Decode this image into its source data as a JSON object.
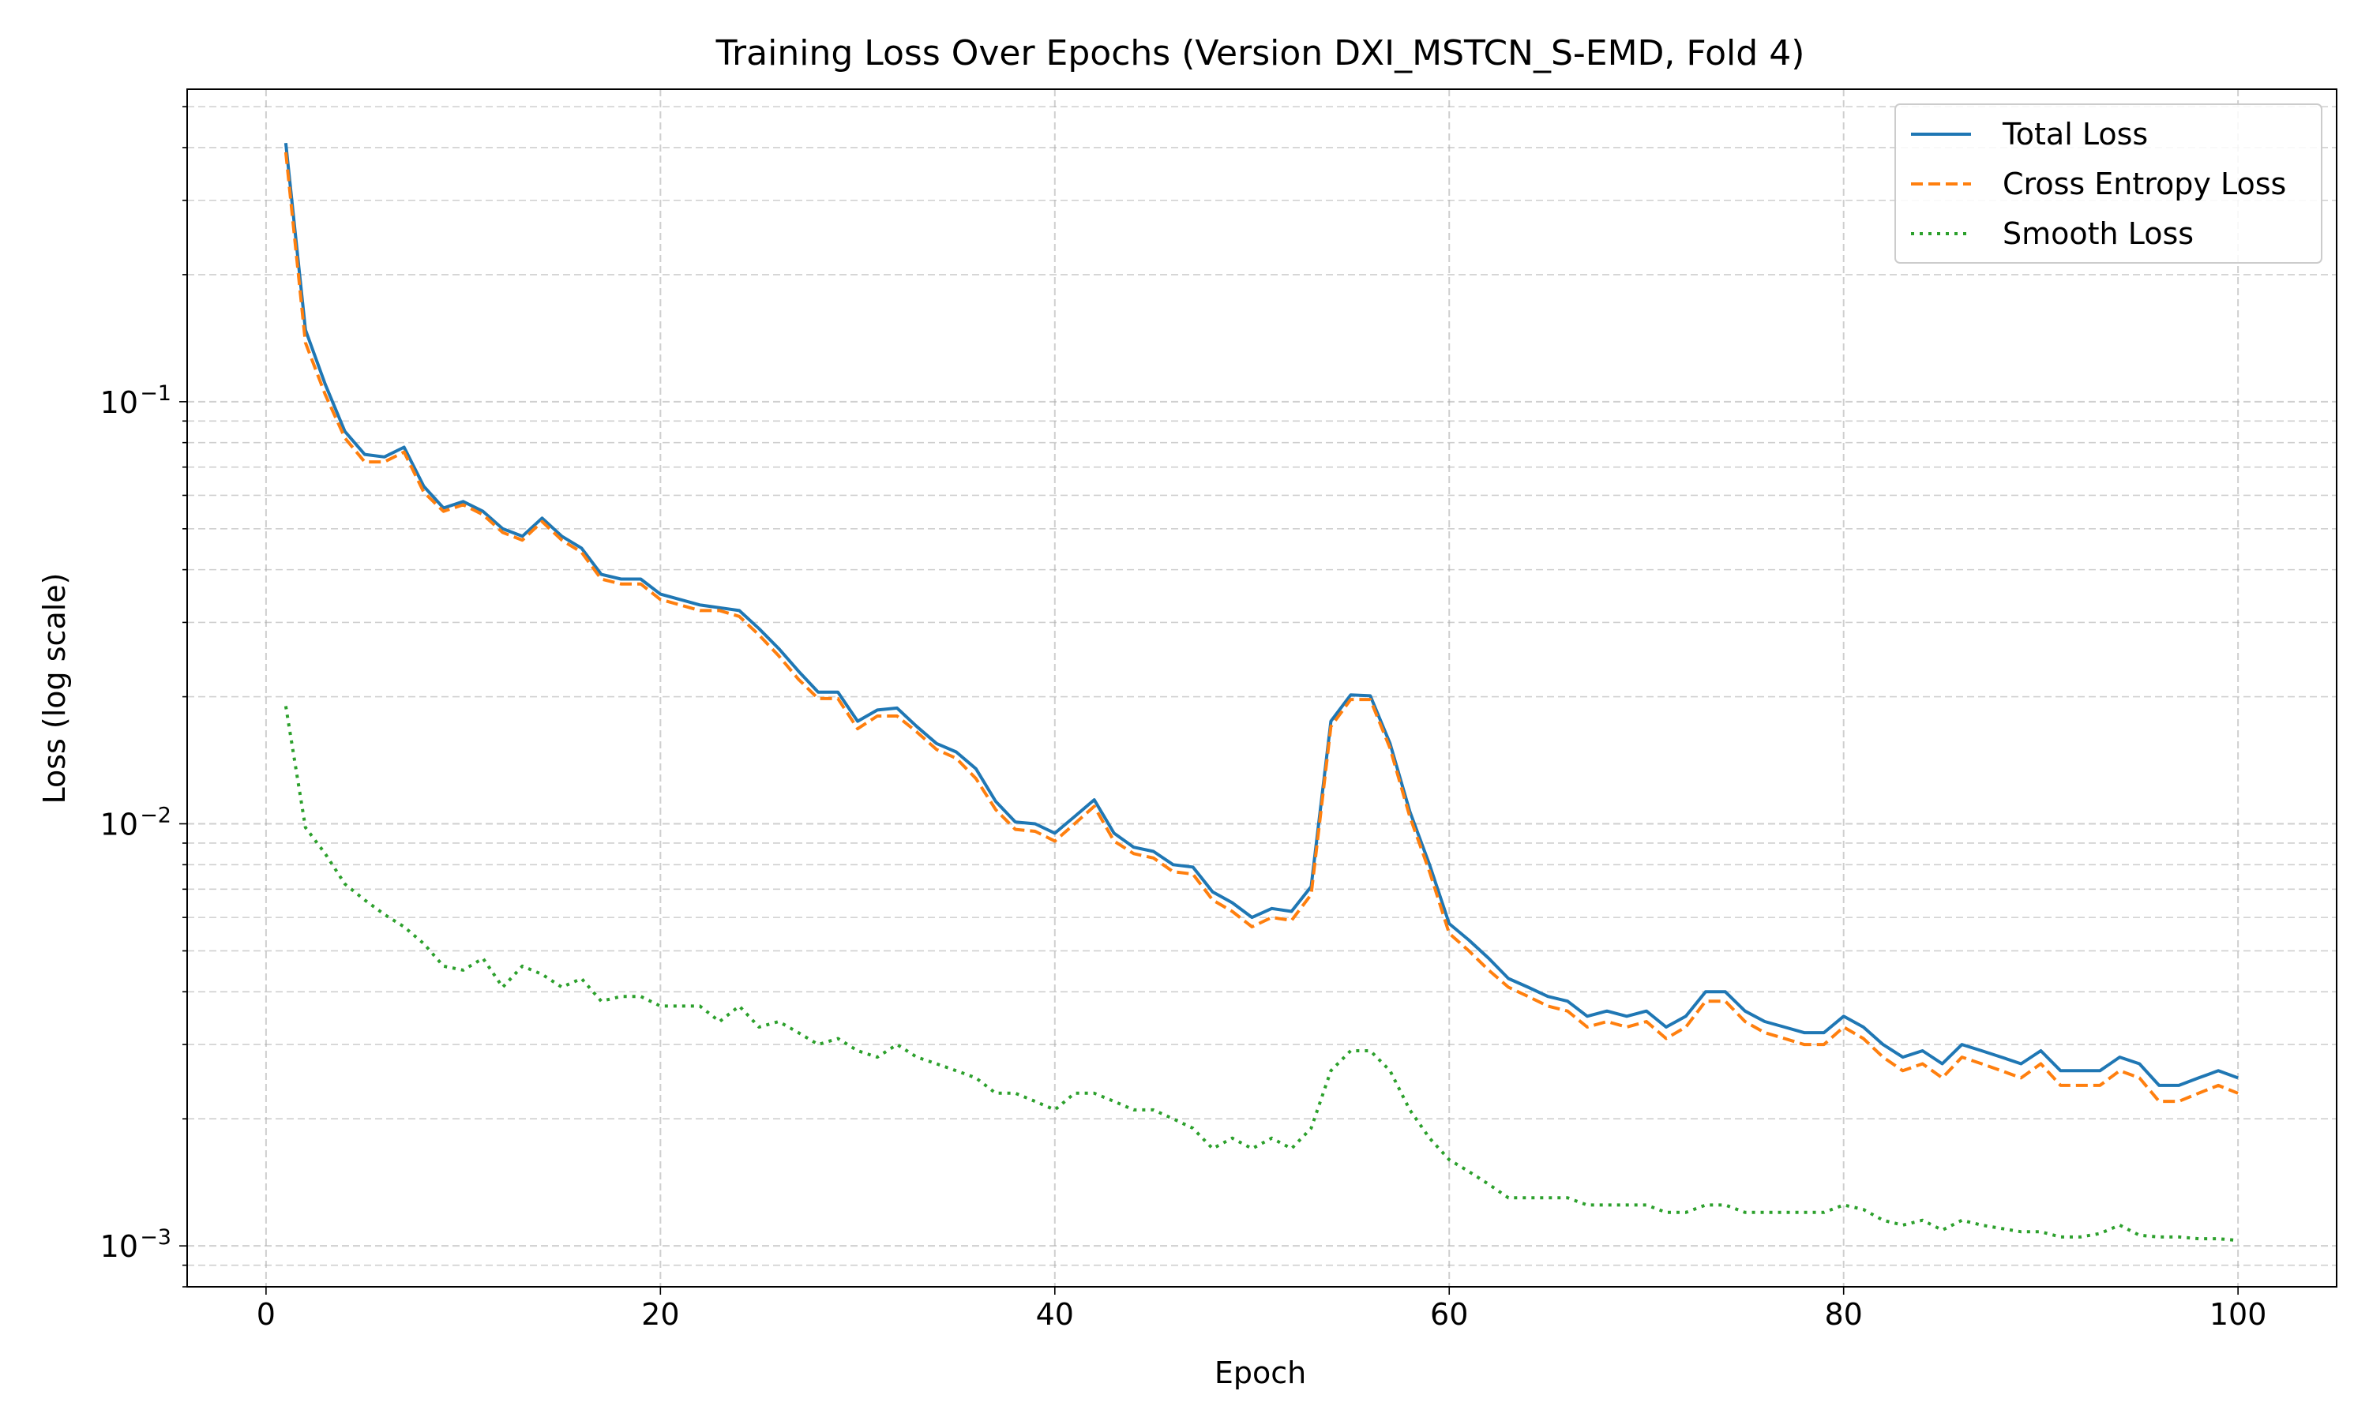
{
  "chart_data": {
    "type": "line",
    "title": "Training Loss Over Epochs (Version DXI_MSTCN_S-EMD, Fold 4)",
    "xlabel": "Epoch",
    "ylabel": "Loss (log scale)",
    "xscale": "linear",
    "yscale": "log",
    "xlim": [
      -4,
      105
    ],
    "ylim": [
      0.0008,
      0.55
    ],
    "grid": true,
    "legend_position": "top-right",
    "x_ticks": [
      {
        "value": 0,
        "label": "0"
      },
      {
        "value": 20,
        "label": "20"
      },
      {
        "value": 40,
        "label": "40"
      },
      {
        "value": 60,
        "label": "60"
      },
      {
        "value": 80,
        "label": "80"
      },
      {
        "value": 100,
        "label": "100"
      }
    ],
    "y_ticks": [
      {
        "value": 0.1,
        "base": "10",
        "exp": "−1"
      },
      {
        "value": 0.01,
        "base": "10",
        "exp": "−2"
      },
      {
        "value": 0.001,
        "base": "10",
        "exp": "−3"
      }
    ],
    "x": [
      1,
      2,
      3,
      4,
      5,
      6,
      7,
      8,
      9,
      10,
      11,
      12,
      13,
      14,
      15,
      16,
      17,
      18,
      19,
      20,
      21,
      22,
      23,
      24,
      25,
      26,
      27,
      28,
      29,
      30,
      31,
      32,
      33,
      34,
      35,
      36,
      37,
      38,
      39,
      40,
      41,
      42,
      43,
      44,
      45,
      46,
      47,
      48,
      49,
      50,
      51,
      52,
      53,
      54,
      55,
      56,
      57,
      58,
      59,
      60,
      61,
      62,
      63,
      64,
      65,
      66,
      67,
      68,
      69,
      70,
      71,
      72,
      73,
      74,
      75,
      76,
      77,
      78,
      79,
      80,
      81,
      82,
      83,
      84,
      85,
      86,
      87,
      88,
      89,
      90,
      91,
      92,
      93,
      94,
      95,
      96,
      97,
      98,
      99,
      100
    ],
    "series": [
      {
        "name": "Total Loss",
        "color": "#1f77b4",
        "style": "solid",
        "values": [
          0.41,
          0.148,
          0.11,
          0.085,
          0.075,
          0.074,
          0.078,
          0.063,
          0.056,
          0.058,
          0.055,
          0.05,
          0.048,
          0.053,
          0.048,
          0.045,
          0.039,
          0.038,
          0.038,
          0.035,
          0.034,
          0.033,
          0.0325,
          0.032,
          0.029,
          0.026,
          0.023,
          0.0205,
          0.0205,
          0.0175,
          0.0186,
          0.0188,
          0.017,
          0.0155,
          0.0148,
          0.0135,
          0.0113,
          0.0101,
          0.01,
          0.0095,
          0.0104,
          0.0114,
          0.0095,
          0.0088,
          0.0086,
          0.008,
          0.0079,
          0.0069,
          0.0065,
          0.006,
          0.0063,
          0.0062,
          0.0071,
          0.0175,
          0.0202,
          0.0201,
          0.0155,
          0.0107,
          0.008,
          0.0058,
          0.0053,
          0.0048,
          0.0043,
          0.0041,
          0.0039,
          0.0038,
          0.0035,
          0.0036,
          0.0035,
          0.0036,
          0.0033,
          0.0035,
          0.004,
          0.004,
          0.0036,
          0.0034,
          0.0033,
          0.0032,
          0.0032,
          0.0035,
          0.0033,
          0.003,
          0.0028,
          0.0029,
          0.0027,
          0.003,
          0.0029,
          0.0028,
          0.0027,
          0.0029,
          0.0026,
          0.0026,
          0.0026,
          0.0028,
          0.0027,
          0.0024,
          0.0024,
          0.0025,
          0.0026,
          0.0025
        ]
      },
      {
        "name": "Cross Entropy Loss",
        "color": "#ff7f0e",
        "style": "dashed",
        "values": [
          0.39,
          0.138,
          0.104,
          0.082,
          0.072,
          0.072,
          0.076,
          0.061,
          0.055,
          0.057,
          0.054,
          0.049,
          0.047,
          0.052,
          0.047,
          0.044,
          0.038,
          0.037,
          0.037,
          0.034,
          0.033,
          0.032,
          0.032,
          0.031,
          0.028,
          0.025,
          0.022,
          0.0198,
          0.0198,
          0.0168,
          0.018,
          0.018,
          0.0165,
          0.015,
          0.0143,
          0.0128,
          0.0108,
          0.0097,
          0.0096,
          0.0091,
          0.01,
          0.011,
          0.0091,
          0.0085,
          0.0083,
          0.0077,
          0.0076,
          0.0066,
          0.0062,
          0.0057,
          0.006,
          0.0059,
          0.0068,
          0.017,
          0.0197,
          0.0197,
          0.0151,
          0.0104,
          0.0077,
          0.0055,
          0.005,
          0.0045,
          0.0041,
          0.0039,
          0.0037,
          0.0036,
          0.0033,
          0.0034,
          0.0033,
          0.0034,
          0.0031,
          0.0033,
          0.0038,
          0.0038,
          0.0034,
          0.0032,
          0.0031,
          0.003,
          0.003,
          0.0033,
          0.0031,
          0.0028,
          0.0026,
          0.0027,
          0.0025,
          0.0028,
          0.0027,
          0.0026,
          0.0025,
          0.0027,
          0.0024,
          0.0024,
          0.0024,
          0.0026,
          0.0025,
          0.0022,
          0.0022,
          0.0023,
          0.0024,
          0.0023
        ]
      },
      {
        "name": "Smooth Loss",
        "color": "#2ca02c",
        "style": "dotted",
        "values": [
          0.019,
          0.0098,
          0.0085,
          0.0072,
          0.0066,
          0.0061,
          0.0057,
          0.0052,
          0.0046,
          0.0045,
          0.0048,
          0.0041,
          0.0046,
          0.0044,
          0.0041,
          0.0043,
          0.0038,
          0.0039,
          0.0039,
          0.0037,
          0.0037,
          0.0037,
          0.0034,
          0.0037,
          0.0033,
          0.0034,
          0.0032,
          0.003,
          0.0031,
          0.0029,
          0.0028,
          0.003,
          0.0028,
          0.0027,
          0.0026,
          0.0025,
          0.0023,
          0.0023,
          0.0022,
          0.0021,
          0.0023,
          0.0023,
          0.0022,
          0.0021,
          0.0021,
          0.002,
          0.0019,
          0.0017,
          0.0018,
          0.0017,
          0.0018,
          0.0017,
          0.0019,
          0.0026,
          0.0029,
          0.0029,
          0.0026,
          0.0021,
          0.0018,
          0.0016,
          0.0015,
          0.0014,
          0.0013,
          0.0013,
          0.0013,
          0.0013,
          0.00125,
          0.00125,
          0.00125,
          0.00125,
          0.0012,
          0.0012,
          0.00125,
          0.00125,
          0.0012,
          0.0012,
          0.0012,
          0.0012,
          0.0012,
          0.00125,
          0.00122,
          0.00115,
          0.00112,
          0.00115,
          0.00109,
          0.00115,
          0.00112,
          0.0011,
          0.00108,
          0.00108,
          0.00105,
          0.00105,
          0.00107,
          0.00112,
          0.00106,
          0.00105,
          0.00105,
          0.00104,
          0.00104,
          0.00103
        ]
      }
    ]
  }
}
